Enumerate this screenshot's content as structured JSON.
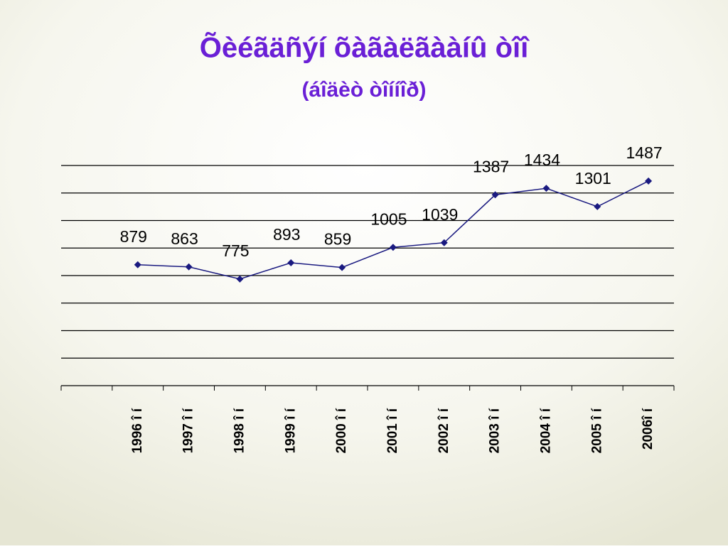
{
  "chart_data": {
    "type": "line",
    "title": "Õèéãäñýí õàãàëãààíû òîî",
    "subtitle": "(áîäèò òîííîð)",
    "categories": [
      null,
      "1996 î í",
      "1997 î í",
      "1998 î í",
      "1999 î í",
      "2000 î í",
      "2001 î í",
      "2002 î í",
      "2003 î í",
      "2004 î í",
      "2005 î í",
      "2006î í"
    ],
    "values": [
      null,
      879,
      863,
      775,
      893,
      859,
      1005,
      1039,
      1387,
      1434,
      1301,
      1487
    ],
    "color": "#1a1a80",
    "ylim": [
      0,
      1600
    ],
    "yticks": [
      0,
      200,
      400,
      600,
      800,
      1000,
      1200,
      1400,
      1600
    ],
    "grid": true
  }
}
